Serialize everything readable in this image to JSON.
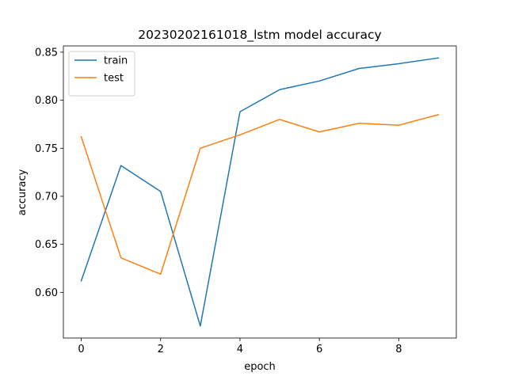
{
  "chart_data": {
    "type": "line",
    "title": "20230202161018_lstm model accuracy",
    "xlabel": "epoch",
    "ylabel": "accuracy",
    "x": [
      0,
      1,
      2,
      3,
      4,
      5,
      6,
      7,
      8,
      9
    ],
    "xlim": [
      -0.45,
      9.45
    ],
    "ylim": [
      0.5525,
      0.8565
    ],
    "xticks": [
      0,
      2,
      4,
      6,
      8
    ],
    "xtick_labels": [
      "0",
      "2",
      "4",
      "6",
      "8"
    ],
    "yticks": [
      0.6,
      0.65,
      0.7,
      0.75,
      0.8,
      0.85
    ],
    "ytick_labels": [
      "0.60",
      "0.65",
      "0.70",
      "0.75",
      "0.80",
      "0.85"
    ],
    "grid": false,
    "legend_position": "top-left",
    "series": [
      {
        "name": "train",
        "color": "#1f77b4",
        "values": [
          0.612,
          0.732,
          0.705,
          0.565,
          0.788,
          0.811,
          0.82,
          0.833,
          0.838,
          0.844
        ]
      },
      {
        "name": "test",
        "color": "#ff7f0e",
        "values": [
          0.762,
          0.636,
          0.619,
          0.75,
          0.764,
          0.78,
          0.767,
          0.776,
          0.774,
          0.785
        ]
      }
    ]
  }
}
